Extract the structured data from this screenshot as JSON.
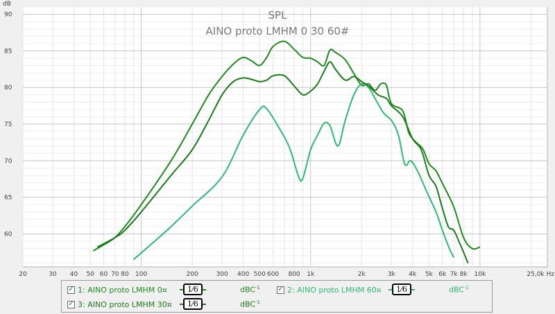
{
  "chart_data": {
    "type": "line",
    "title": "SPL",
    "subtitle": "AINO proto LMHM 0 30 60#",
    "ylabel": "dB",
    "xlabel": "Hz",
    "xscale": "log",
    "xlim": [
      20,
      25000
    ],
    "ylim": [
      55.5,
      91
    ],
    "grid": true,
    "x_ticks": [
      {
        "v": 20,
        "label": "20"
      },
      {
        "v": 30,
        "label": "30"
      },
      {
        "v": 40,
        "label": "40"
      },
      {
        "v": 50,
        "label": "50"
      },
      {
        "v": 60,
        "label": "60"
      },
      {
        "v": 70,
        "label": "70"
      },
      {
        "v": 80,
        "label": "80"
      },
      {
        "v": 100,
        "label": "100"
      },
      {
        "v": 200,
        "label": "200"
      },
      {
        "v": 300,
        "label": "300"
      },
      {
        "v": 400,
        "label": "400"
      },
      {
        "v": 500,
        "label": "500"
      },
      {
        "v": 600,
        "label": "600"
      },
      {
        "v": 800,
        "label": "800"
      },
      {
        "v": 1000,
        "label": "1k"
      },
      {
        "v": 2000,
        "label": "2k"
      },
      {
        "v": 3000,
        "label": "3k"
      },
      {
        "v": 4000,
        "label": "4k"
      },
      {
        "v": 5000,
        "label": "5k"
      },
      {
        "v": 6000,
        "label": "6k"
      },
      {
        "v": 7000,
        "label": "7k"
      },
      {
        "v": 8000,
        "label": "8k"
      },
      {
        "v": 10000,
        "label": "10k"
      },
      {
        "v": 25000,
        "label": "25,0k Hz"
      }
    ],
    "y_ticks": [
      60,
      65,
      70,
      75,
      80,
      85,
      90
    ],
    "series": [
      {
        "name": "AINO proto LMHM 0",
        "color": "#1e8a1e",
        "points": [
          [
            52,
            57.7
          ],
          [
            60,
            58.5
          ],
          [
            70,
            59.5
          ],
          [
            80,
            61
          ],
          [
            100,
            64
          ],
          [
            150,
            70
          ],
          [
            200,
            75
          ],
          [
            250,
            79
          ],
          [
            300,
            81.5
          ],
          [
            350,
            83.2
          ],
          [
            400,
            84.1
          ],
          [
            450,
            83.6
          ],
          [
            500,
            83
          ],
          [
            550,
            84.1
          ],
          [
            600,
            85.6
          ],
          [
            700,
            86.3
          ],
          [
            800,
            85.2
          ],
          [
            900,
            84.1
          ],
          [
            1000,
            84
          ],
          [
            1100,
            83.5
          ],
          [
            1200,
            83
          ],
          [
            1300,
            85.1
          ],
          [
            1400,
            84.8
          ],
          [
            1600,
            83.8
          ],
          [
            1800,
            81.9
          ],
          [
            2000,
            80.3
          ],
          [
            2200,
            80.5
          ],
          [
            2400,
            79.6
          ],
          [
            2600,
            80.5
          ],
          [
            2800,
            80.3
          ],
          [
            3000,
            77.8
          ],
          [
            3500,
            76.8
          ],
          [
            3800,
            73.8
          ],
          [
            4200,
            72.5
          ],
          [
            4600,
            71.6
          ],
          [
            5000,
            69.6
          ],
          [
            5500,
            68.6
          ],
          [
            6000,
            66.9
          ],
          [
            7000,
            63.7
          ],
          [
            8000,
            59.5
          ],
          [
            9000,
            58
          ],
          [
            10000,
            58.2
          ]
        ]
      },
      {
        "name": "AINO proto LMHM 60",
        "color": "#2cb873",
        "points": [
          [
            90,
            56.5
          ],
          [
            120,
            59
          ],
          [
            150,
            61
          ],
          [
            200,
            63.8
          ],
          [
            300,
            67.8
          ],
          [
            400,
            73.5
          ],
          [
            500,
            77
          ],
          [
            550,
            77.1
          ],
          [
            650,
            74.5
          ],
          [
            750,
            71.8
          ],
          [
            850,
            67.8
          ],
          [
            900,
            67.6
          ],
          [
            1000,
            71.5
          ],
          [
            1100,
            73.5
          ],
          [
            1200,
            75.1
          ],
          [
            1300,
            74.8
          ],
          [
            1450,
            72
          ],
          [
            1600,
            75.5
          ],
          [
            1800,
            79
          ],
          [
            2000,
            80.5
          ],
          [
            2200,
            80
          ],
          [
            2400,
            78.5
          ],
          [
            2700,
            76.5
          ],
          [
            3000,
            75.5
          ],
          [
            3300,
            73.5
          ],
          [
            3600,
            69.5
          ],
          [
            3900,
            70
          ],
          [
            4300,
            68.5
          ],
          [
            4800,
            66
          ],
          [
            5500,
            63
          ],
          [
            6000,
            60.5
          ],
          [
            6600,
            58
          ],
          [
            7000,
            56.8
          ]
        ]
      },
      {
        "name": "AINO proto LMHM 30",
        "color": "#1a7a1a",
        "points": [
          [
            55,
            58.2
          ],
          [
            70,
            59.5
          ],
          [
            80,
            60.5
          ],
          [
            100,
            63
          ],
          [
            150,
            68
          ],
          [
            200,
            71.5
          ],
          [
            250,
            75.5
          ],
          [
            300,
            79
          ],
          [
            350,
            80.8
          ],
          [
            400,
            81.3
          ],
          [
            450,
            81.1
          ],
          [
            500,
            80.8
          ],
          [
            550,
            81
          ],
          [
            600,
            81.6
          ],
          [
            700,
            81.6
          ],
          [
            800,
            80.2
          ],
          [
            900,
            79
          ],
          [
            1000,
            79.5
          ],
          [
            1100,
            80.5
          ],
          [
            1200,
            82.2
          ],
          [
            1300,
            83.5
          ],
          [
            1400,
            82.5
          ],
          [
            1600,
            81
          ],
          [
            1800,
            81.5
          ],
          [
            2000,
            80.8
          ],
          [
            2200,
            80.2
          ],
          [
            2500,
            79
          ],
          [
            2800,
            78.5
          ],
          [
            3000,
            77.5
          ],
          [
            3500,
            76
          ],
          [
            4000,
            73
          ],
          [
            4500,
            71.5
          ],
          [
            5000,
            68
          ],
          [
            5500,
            66.5
          ],
          [
            6000,
            63.5
          ],
          [
            6500,
            61
          ],
          [
            7000,
            60.5
          ],
          [
            7500,
            59
          ],
          [
            8000,
            57.5
          ],
          [
            8500,
            56
          ]
        ]
      }
    ]
  },
  "legend": [
    {
      "label": "1: AINO proto LMHM 0¤",
      "smoothing": "1⁄6",
      "unit": "dBC",
      "unit_sup": "-1",
      "checked": "✓",
      "color": "#1e8a1e"
    },
    {
      "label": "2: AINO proto LMHM 60¤",
      "smoothing": "1⁄6",
      "unit": "dBC",
      "unit_sup": "-1",
      "checked": "✓",
      "color": "#2cb873"
    },
    {
      "label": "3: AINO proto LMHM 30¤",
      "smoothing": "1⁄6",
      "unit": "dBC",
      "unit_sup": "-1",
      "checked": "✓",
      "color": "#1a7a1a"
    }
  ]
}
